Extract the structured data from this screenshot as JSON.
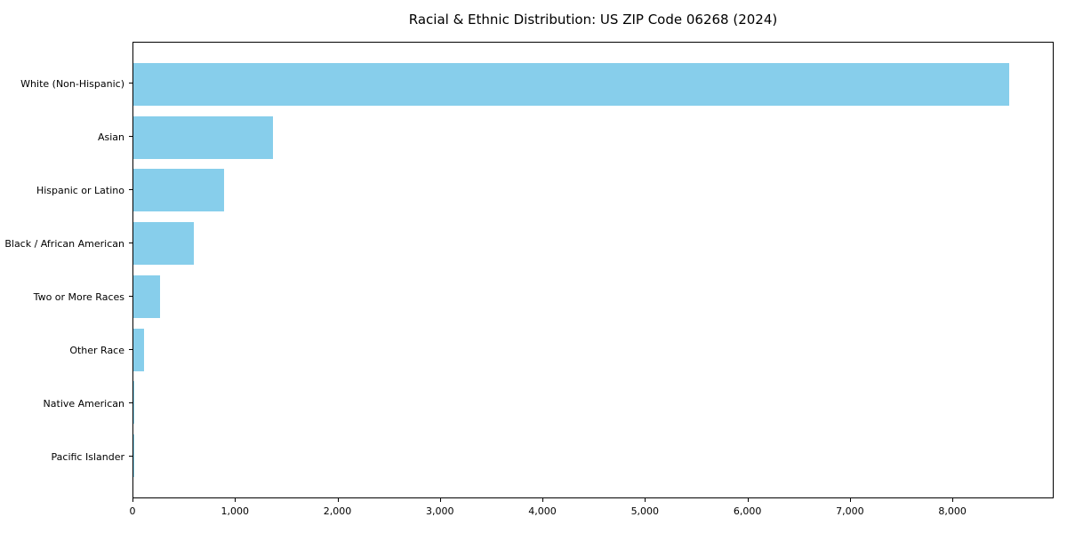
{
  "chart_data": {
    "type": "bar",
    "orientation": "horizontal",
    "title": "Racial & Ethnic Distribution: US ZIP Code 06268 (2024)",
    "categories": [
      "White (Non-Hispanic)",
      "Asian",
      "Hispanic or Latino",
      "Black / African American",
      "Two or More Races",
      "Other Race",
      "Native American",
      "Pacific Islander"
    ],
    "values": [
      8560,
      1365,
      890,
      590,
      265,
      100,
      10,
      5
    ],
    "bar_color": "#87CEEB",
    "background_color": "#ffffff",
    "text_color": "#000000",
    "axis_color": "#000000",
    "xlabel": "",
    "ylabel": "",
    "xlim": [
      0,
      8988
    ],
    "xticks": [
      0,
      1000,
      2000,
      3000,
      4000,
      5000,
      6000,
      7000,
      8000
    ],
    "xtick_labels": [
      "0",
      "1,000",
      "2,000",
      "3,000",
      "4,000",
      "5,000",
      "6,000",
      "7,000",
      "8,000"
    ],
    "grid": false,
    "legend": false
  }
}
